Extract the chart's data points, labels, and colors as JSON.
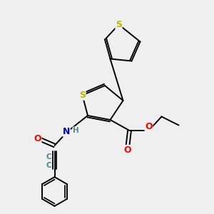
{
  "bg_color": "#efefef",
  "atom_colors": {
    "S": "#b8b800",
    "O": "#ff0000",
    "N": "#0000cc",
    "C": "#4a8a8a",
    "H": "#4a8a8a"
  },
  "bond_color": "#000000",
  "bond_width": 1.4
}
